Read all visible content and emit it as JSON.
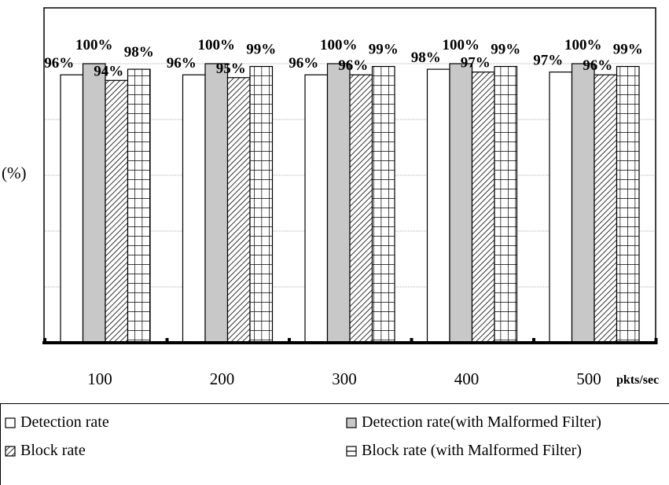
{
  "chart_data": {
    "type": "bar",
    "title": "",
    "ylabel": "(%)",
    "xlabel": "pkts/sec",
    "ylim": [
      0,
      100
    ],
    "categories": [
      "100",
      "200",
      "300",
      "400",
      "500"
    ],
    "series": [
      {
        "name": "Detection rate",
        "values": [
          96,
          96,
          96,
          98,
          97
        ],
        "labels": [
          "96%",
          "96%",
          "96%",
          "98%",
          "97%"
        ],
        "pattern": "white"
      },
      {
        "name": "Detection rate(with Malformed Filter)",
        "values": [
          100,
          100,
          100,
          100,
          100
        ],
        "labels": [
          "100%",
          "100%",
          "100%",
          "100%",
          "100%"
        ],
        "pattern": "gray"
      },
      {
        "name": "Block rate",
        "values": [
          94,
          95,
          96,
          97,
          96
        ],
        "labels": [
          "94%",
          "95%",
          "96%",
          "97%",
          "96%"
        ],
        "pattern": "hatch"
      },
      {
        "name": "Block rate (with Malformed Filter)",
        "values": [
          98,
          99,
          99,
          99,
          99
        ],
        "labels": [
          "98%",
          "99%",
          "99%",
          "99%",
          "99%"
        ],
        "pattern": "grid"
      }
    ],
    "grid": true,
    "legend_position": "bottom"
  },
  "colors": {
    "gray_bar": "#c8c8c8",
    "grid": "#999999",
    "axis": "#000000"
  }
}
